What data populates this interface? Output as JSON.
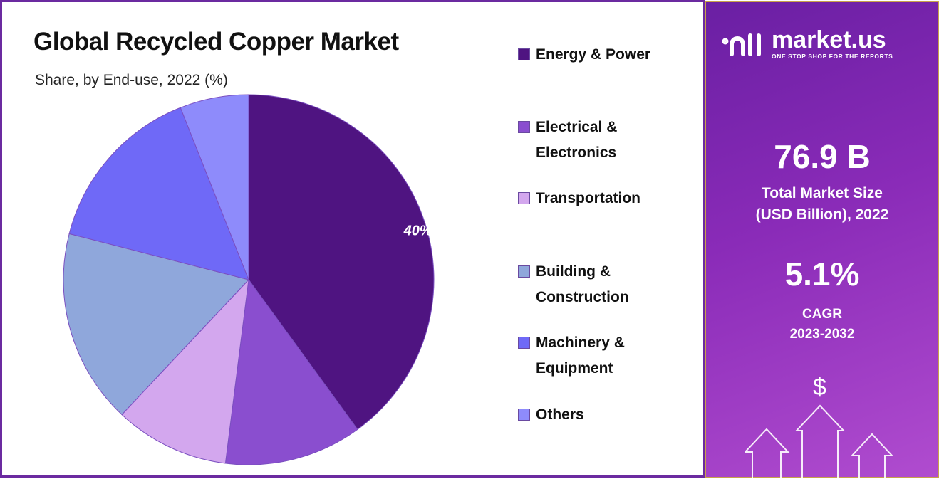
{
  "chart_data": {
    "type": "pie",
    "title": "Global Recycled Copper Market",
    "subtitle": "Share, by End-use, 2022 (%)",
    "categories": [
      "Energy & Power",
      "Electrical & Electronics",
      "Transportation",
      "Building & Construction",
      "Machinery & Equipment",
      "Others"
    ],
    "legend_lines": [
      [
        "Energy & Power"
      ],
      [
        "Electrical &",
        "Electronics"
      ],
      [
        "Transportation"
      ],
      [
        "Building &",
        "Construction"
      ],
      [
        "Machinery &",
        "Equipment"
      ],
      [
        "Others"
      ]
    ],
    "values": [
      40,
      12,
      10,
      17,
      15,
      6
    ],
    "colors": [
      "#4f1481",
      "#8a4ecf",
      "#d3a7ee",
      "#8fa7db",
      "#6f69f7",
      "#8e8bfb"
    ],
    "data_labels": [
      "40%",
      "",
      "",
      "",
      "",
      ""
    ],
    "legend_placement": "right"
  },
  "panel": {
    "logo_name": "market.us",
    "logo_tagline": "ONE STOP SHOP FOR THE REPORTS",
    "market_size": "76.9 B",
    "market_size_label_1": "Total Market Size",
    "market_size_label_2": "(USD Billion), 2022",
    "cagr": "5.1%",
    "cagr_label_1": "CAGR",
    "cagr_label_2": "2023-2032",
    "dollar": "$"
  }
}
